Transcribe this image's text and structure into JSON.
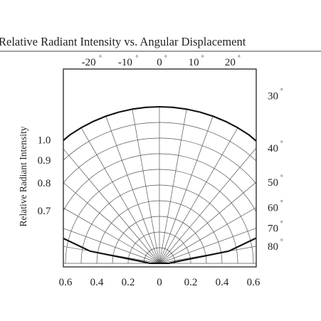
{
  "chart_data": {
    "type": "polar",
    "title": "Relative Radiant Intensity vs. Angular Displacement",
    "ylabel": "Relative Radiant Intensity",
    "top_angle_ticks": [
      {
        "label": "-20",
        "deg": -20
      },
      {
        "label": "-10",
        "deg": -10
      },
      {
        "label": "0",
        "deg": 0
      },
      {
        "label": "10",
        "deg": 10
      },
      {
        "label": "20",
        "deg": 20
      }
    ],
    "right_angle_ticks": [
      {
        "label": "30",
        "deg": 30
      },
      {
        "label": "40",
        "deg": 40
      },
      {
        "label": "50",
        "deg": 50
      },
      {
        "label": "60",
        "deg": 60
      },
      {
        "label": "70",
        "deg": 70
      },
      {
        "label": "80",
        "deg": 80
      }
    ],
    "left_intensity_ticks": [
      "1.0",
      "0.9",
      "0.8",
      "0.7"
    ],
    "bottom_ticks": [
      {
        "label": "0.6",
        "value": -0.6
      },
      {
        "label": "0.4",
        "value": -0.4
      },
      {
        "label": "0.2",
        "value": -0.2
      },
      {
        "label": "0",
        "value": 0
      },
      {
        "label": "0.2",
        "value": 0.2
      },
      {
        "label": "0.4",
        "value": 0.4
      },
      {
        "label": "0.6",
        "value": 0.6
      }
    ],
    "degree_symbol": "°",
    "grid": true,
    "series": [
      {
        "angles_deg": [
          -90,
          -85,
          -80,
          -75,
          -70,
          -65,
          -60,
          -55,
          -50,
          -45,
          -40,
          -35,
          -30,
          -25,
          -20,
          -15,
          -10,
          -5,
          0,
          5,
          10,
          15,
          20,
          25,
          30,
          35,
          40,
          45,
          50,
          55,
          60,
          65,
          70,
          75,
          80,
          85,
          90
        ],
        "values": [
          0.06,
          0.1,
          0.45,
          0.66,
          0.76,
          0.84,
          0.89,
          0.935,
          0.965,
          0.985,
          0.995,
          1.0,
          1.0,
          1.0,
          1.0,
          1.0,
          1.0,
          1.0,
          1.0,
          1.0,
          1.0,
          1.0,
          1.0,
          1.0,
          1.0,
          1.0,
          0.995,
          0.985,
          0.965,
          0.935,
          0.89,
          0.84,
          0.76,
          0.66,
          0.45,
          0.1,
          0.06
        ]
      }
    ]
  }
}
